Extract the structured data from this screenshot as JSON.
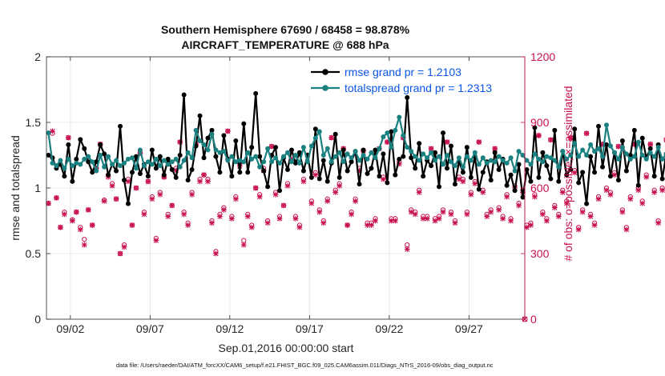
{
  "chart_data": {
    "type": "line",
    "title_line1": "Southern Hemisphere 67690 / 68458 = 98.878%",
    "title_line2": "AIRCRAFT_TEMPERATURE @ 688 hPa",
    "xlabel": "Sep.01,2016 00:00:00 start",
    "ylabel": "rmse and totalspread",
    "ylabel_right": "# of obs: o=possible; ×=assimilated",
    "footnote": "data file: /Users/raeder/DAI/ATM_forcXX/CAM6_setup/f.e21.FHIST_BGC.f09_025.CAM6assim.011/Diags_NTrS_2016-09/obs_diag_output.nc",
    "xlim": [
      0.5,
      30.5
    ],
    "ylim": [
      0,
      2
    ],
    "ylim_right": [
      0,
      1200
    ],
    "x_tick_values": [
      2,
      7,
      12,
      17,
      22,
      27
    ],
    "x_tick_labels": [
      "09/02",
      "09/07",
      "09/12",
      "09/17",
      "09/22",
      "09/27"
    ],
    "y_ticks": [
      0,
      0.5,
      1,
      1.5,
      2
    ],
    "y_tick_labels": [
      "0",
      "0.5",
      "1",
      "1.5",
      "2"
    ],
    "y_ticks_right": [
      0,
      300,
      600,
      900,
      1200
    ],
    "y_tick_labels_right": [
      "0",
      "300",
      "600",
      "900",
      "1200"
    ],
    "grid": true,
    "legend_position": "top-right",
    "step_days": 0.25,
    "x_start": 0.625,
    "series": [
      {
        "name": "rmse grand pr = 1.2103",
        "color": "#000000",
        "axis": "left",
        "values": [
          1.25,
          1.23,
          1.15,
          1.18,
          1.09,
          1.33,
          1.05,
          1.22,
          1.37,
          1.3,
          1.2,
          1.12,
          1.2,
          1.33,
          1.26,
          1.1,
          1.18,
          1.13,
          1.47,
          1.06,
          0.88,
          1.12,
          1.24,
          1.11,
          1.18,
          1.09,
          1.29,
          1.15,
          1.24,
          1.1,
          1.22,
          1.14,
          1.08,
          1.25,
          1.71,
          1.06,
          1.14,
          1.32,
          1.55,
          1.23,
          1.38,
          1.44,
          1.24,
          1.12,
          1.4,
          1.22,
          1.09,
          1.36,
          1.12,
          1.49,
          1.12,
          1.31,
          1.72,
          1.24,
          1.13,
          1.01,
          1.25,
          1.31,
          0.98,
          1.23,
          1.14,
          1.29,
          1.19,
          1.27,
          1.13,
          1.25,
          1.08,
          1.45,
          1.07,
          1.21,
          1.05,
          1.19,
          1.41,
          1.08,
          1.29,
          1.13,
          1.2,
          1.28,
          1.03,
          1.29,
          1.11,
          1.15,
          1.29,
          1.09,
          1.26,
          1.04,
          1.43,
          1.1,
          1.22,
          1.24,
          1.69,
          1.23,
          1.15,
          1.34,
          1.09,
          1.21,
          1.17,
          1.27,
          1.01,
          1.42,
          1.15,
          1.32,
          1.03,
          1.2,
          1.12,
          1.31,
          1.08,
          1.24,
          0.99,
          1.12,
          1.2,
          1.06,
          1.27,
          1.14,
          1.22,
          1.02,
          1.1,
          0.98,
          1.18,
          0.93,
          1.14,
          1.05,
          1.46,
          1.08,
          1.27,
          1.17,
          1.07,
          1.44,
          1.05,
          1.28,
          1.1,
          1.14,
          1.45,
          1.04,
          1.12,
          0.88,
          1.24,
          1.12,
          1.47,
          1.16,
          1.33,
          1.09,
          1.27,
          1.06,
          1.36,
          1.13,
          1.25,
          1.44,
          1.02,
          1.38,
          1.23,
          1.3,
          1.09,
          1.33,
          1.07,
          1.26,
          1.01,
          1.16,
          1.34,
          1.07,
          1.49,
          1.19
        ]
      },
      {
        "name": "totalspread grand pr = 1.2313",
        "color": "#1a8080",
        "axis": "left",
        "values": [
          1.42,
          1.19,
          1.17,
          1.21,
          1.15,
          1.22,
          1.17,
          1.19,
          1.18,
          1.22,
          1.24,
          1.2,
          1.13,
          1.25,
          1.16,
          1.24,
          1.18,
          1.21,
          1.17,
          1.19,
          1.22,
          1.23,
          1.15,
          1.29,
          1.17,
          1.2,
          1.18,
          1.22,
          1.17,
          1.21,
          1.18,
          1.2,
          1.22,
          1.16,
          1.21,
          1.27,
          1.23,
          1.44,
          1.36,
          1.33,
          1.29,
          1.41,
          1.29,
          1.27,
          1.28,
          1.21,
          1.24,
          1.2,
          1.21,
          1.2,
          1.27,
          1.22,
          1.24,
          1.16,
          1.2,
          1.3,
          1.2,
          1.23,
          1.19,
          1.24,
          1.27,
          1.2,
          1.25,
          1.19,
          1.31,
          1.2,
          1.32,
          1.38,
          1.43,
          1.25,
          1.3,
          1.2,
          1.24,
          1.27,
          1.2,
          1.26,
          1.23,
          1.28,
          1.21,
          1.25,
          1.22,
          1.27,
          1.23,
          1.3,
          1.39,
          1.42,
          1.31,
          1.44,
          1.54,
          1.4,
          1.31,
          1.28,
          1.24,
          1.21,
          1.26,
          1.23,
          1.27,
          1.21,
          1.24,
          1.18,
          1.25,
          1.2,
          1.17,
          1.23,
          1.16,
          1.24,
          1.21,
          1.27,
          1.18,
          1.23,
          1.19,
          1.21,
          1.2,
          1.24,
          1.21,
          1.19,
          1.23,
          1.13,
          1.28,
          1.25,
          1.21,
          1.18,
          1.26,
          1.22,
          1.2,
          1.24,
          1.23,
          1.21,
          1.16,
          1.28,
          1.22,
          1.25,
          1.34,
          1.24,
          1.29,
          1.25,
          1.33,
          1.28,
          1.3,
          1.24,
          1.48,
          1.32,
          1.27,
          1.22,
          1.31,
          1.26,
          1.22,
          1.24,
          1.35,
          1.25,
          1.22,
          1.27,
          1.24,
          1.31,
          1.22,
          1.26,
          1.28,
          1.25,
          1.2,
          1.23
        ]
      },
      {
        "name": "possible",
        "color": "#c8104f",
        "axis": "right",
        "marker": "circle",
        "values": [
          530,
          850,
          555,
          420,
          490,
          830,
          455,
          490,
          420,
          365,
          500,
          430,
          690,
          800,
          545,
          660,
          620,
          550,
          300,
          340,
          640,
          430,
          600,
          760,
          490,
          630,
          560,
          370,
          580,
          650,
          480,
          520,
          690,
          810,
          490,
          440,
          580,
          800,
          640,
          660,
          640,
          450,
          310,
          480,
          510,
          860,
          470,
          560,
          710,
          360,
          480,
          430,
          600,
          570,
          690,
          450,
          790,
          580,
          470,
          520,
          620,
          730,
          470,
          430,
          640,
          750,
          540,
          670,
          500,
          450,
          550,
          830,
          590,
          620,
          780,
          430,
          490,
          550,
          690,
          770,
          440,
          440,
          460,
          780,
          650,
          810,
          460,
          460,
          720,
          830,
          340,
          500,
          490,
          590,
          470,
          470,
          780,
          460,
          470,
          500,
          810,
          490,
          450,
          650,
          640,
          490,
          580,
          630,
          810,
          590,
          480,
          500,
          780,
          510,
          470,
          570,
          460,
          610,
          530,
          590,
          430,
          440,
          570,
          840,
          490,
          460,
          820,
          520,
          480,
          590,
          540,
          830,
          680,
          420,
          500,
          850,
          480,
          440,
          560,
          800,
          600,
          580,
          670,
          790,
          500,
          420,
          560,
          800,
          600,
          540,
          660,
          800,
          590,
          450,
          600,
          820,
          500,
          650,
          520,
          450
        ]
      },
      {
        "name": "assimilated",
        "color": "#c8104f",
        "axis": "right",
        "marker": "x",
        "values": [
          530,
          860,
          555,
          420,
          480,
          830,
          450,
          490,
          410,
          340,
          500,
          430,
          690,
          800,
          540,
          650,
          610,
          550,
          300,
          330,
          630,
          430,
          600,
          760,
          480,
          630,
          550,
          360,
          570,
          650,
          470,
          520,
          680,
          810,
          480,
          430,
          570,
          800,
          630,
          660,
          630,
          440,
          300,
          470,
          500,
          860,
          460,
          550,
          700,
          340,
          470,
          420,
          600,
          560,
          680,
          440,
          790,
          570,
          460,
          520,
          610,
          730,
          460,
          420,
          630,
          750,
          530,
          660,
          490,
          440,
          540,
          830,
          580,
          610,
          780,
          430,
          480,
          540,
          680,
          770,
          430,
          430,
          450,
          780,
          640,
          810,
          450,
          450,
          710,
          830,
          320,
          490,
          480,
          580,
          460,
          460,
          780,
          450,
          460,
          490,
          810,
          480,
          440,
          640,
          630,
          480,
          570,
          620,
          810,
          580,
          470,
          490,
          780,
          500,
          460,
          560,
          450,
          600,
          520,
          580,
          420,
          430,
          560,
          840,
          480,
          450,
          820,
          510,
          470,
          580,
          530,
          830,
          670,
          410,
          490,
          850,
          470,
          430,
          550,
          800,
          590,
          570,
          660,
          790,
          490,
          410,
          550,
          800,
          590,
          530,
          650,
          800,
          580,
          440,
          590,
          820,
          490,
          640,
          510,
          440
        ]
      }
    ],
    "end_marker": {
      "x": 30.5,
      "value": 0,
      "axis": "right"
    }
  }
}
